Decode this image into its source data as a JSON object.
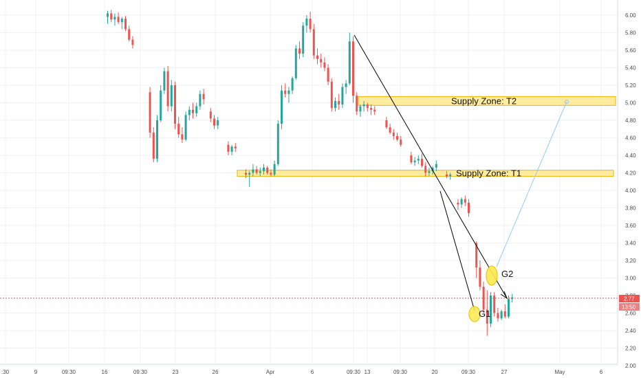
{
  "chart_data": {
    "type": "candlestick",
    "y_axis": {
      "position": "right",
      "min": 2.0,
      "max": 6.1,
      "ticks": [
        "6.00",
        "5.80",
        "5.60",
        "5.40",
        "5.20",
        "5.00",
        "4.80",
        "4.60",
        "4.40",
        "4.20",
        "4.00",
        "3.80",
        "3.60",
        "3.40",
        "3.20",
        "3.00",
        "2.80",
        "2.60",
        "2.40",
        "2.20",
        "2.00"
      ]
    },
    "x_axis": {
      "labels": [
        ":30",
        "9",
        "09:30",
        "16",
        "09:30",
        "23",
        "26",
        "Apr",
        "6",
        "09:30",
        "13",
        "09:30",
        "20",
        "09:30",
        "27",
        "May",
        "6"
      ]
    },
    "grid": true,
    "colors": {
      "up": "#26a69a",
      "down": "#ef5350",
      "zone_fill": "#ffe680",
      "zone_border": "#f0b400",
      "price_line": "#ef5350",
      "trend": "#000000",
      "projection": "#90caf9",
      "marker": "#ffe94d"
    },
    "current_price": {
      "price": 2.77,
      "label": "2.77",
      "countdown": "13:50"
    },
    "zones": [
      {
        "label": "Supply Zone: T2",
        "low": 4.97,
        "high": 5.07
      },
      {
        "label": "Supply Zone: T1",
        "low": 4.16,
        "high": 4.23
      }
    ],
    "annotations": [
      {
        "label": "G1",
        "price": 2.6
      },
      {
        "label": "G2",
        "price": 3.05
      }
    ],
    "candles": [
      [
        5.98,
        6.05,
        5.9,
        6.02
      ],
      [
        6.02,
        6.06,
        5.92,
        5.95
      ],
      [
        5.95,
        6.02,
        5.88,
        5.98
      ],
      [
        5.98,
        6.03,
        5.9,
        5.92
      ],
      [
        5.92,
        5.98,
        5.84,
        5.96
      ],
      [
        5.96,
        5.99,
        5.82,
        5.84
      ],
      [
        5.84,
        5.88,
        5.7,
        5.72
      ],
      [
        5.72,
        5.76,
        5.62,
        5.66
      ],
      [
        5.12,
        5.18,
        4.6,
        4.66
      ],
      [
        4.66,
        4.72,
        4.32,
        4.36
      ],
      [
        4.36,
        4.86,
        4.32,
        4.8
      ],
      [
        4.8,
        5.2,
        4.78,
        5.14
      ],
      [
        5.14,
        5.4,
        5.1,
        5.36
      ],
      [
        5.36,
        5.42,
        4.9,
        4.96
      ],
      [
        4.96,
        5.26,
        4.9,
        5.2
      ],
      [
        5.2,
        5.24,
        4.7,
        4.76
      ],
      [
        4.76,
        4.84,
        4.6,
        4.64
      ],
      [
        4.64,
        4.72,
        4.54,
        4.58
      ],
      [
        4.58,
        4.9,
        4.56,
        4.86
      ],
      [
        4.86,
        4.96,
        4.8,
        4.92
      ],
      [
        4.92,
        5.0,
        4.82,
        4.88
      ],
      [
        4.88,
        5.0,
        4.84,
        4.96
      ],
      [
        4.96,
        5.14,
        4.92,
        5.1
      ],
      [
        5.1,
        5.16,
        4.98,
        5.04
      ],
      [
        4.9,
        4.94,
        4.78,
        4.82
      ],
      [
        4.82,
        4.86,
        4.7,
        4.74
      ],
      [
        4.74,
        4.84,
        4.7,
        4.8
      ],
      [
        4.52,
        4.56,
        4.4,
        4.44
      ],
      [
        4.44,
        4.52,
        4.4,
        4.5
      ],
      [
        4.5,
        4.54,
        4.44,
        4.48
      ],
      [
        4.2,
        4.24,
        4.14,
        4.18
      ],
      [
        4.18,
        4.22,
        4.04,
        4.2
      ],
      [
        4.2,
        4.3,
        4.16,
        4.24
      ],
      [
        4.24,
        4.28,
        4.18,
        4.2
      ],
      [
        4.2,
        4.26,
        4.16,
        4.22
      ],
      [
        4.22,
        4.3,
        4.18,
        4.26
      ],
      [
        4.26,
        4.28,
        4.18,
        4.2
      ],
      [
        4.2,
        4.24,
        4.16,
        4.18
      ],
      [
        4.18,
        4.34,
        4.16,
        4.3
      ],
      [
        4.3,
        4.8,
        4.28,
        4.76
      ],
      [
        4.76,
        5.2,
        4.7,
        5.14
      ],
      [
        5.14,
        5.22,
        5.06,
        5.1
      ],
      [
        5.1,
        5.18,
        5.0,
        5.14
      ],
      [
        5.14,
        5.3,
        5.1,
        5.28
      ],
      [
        5.28,
        5.66,
        5.26,
        5.62
      ],
      [
        5.62,
        5.7,
        5.5,
        5.56
      ],
      [
        5.56,
        5.92,
        5.52,
        5.88
      ],
      [
        5.88,
        6.0,
        5.8,
        5.96
      ],
      [
        5.96,
        6.04,
        5.8,
        5.84
      ],
      [
        5.84,
        5.9,
        5.5,
        5.54
      ],
      [
        5.54,
        5.62,
        5.44,
        5.5
      ],
      [
        5.5,
        5.56,
        5.4,
        5.46
      ],
      [
        5.46,
        5.52,
        5.36,
        5.4
      ],
      [
        5.4,
        5.44,
        5.2,
        5.24
      ],
      [
        5.24,
        5.28,
        4.9,
        4.94
      ],
      [
        4.94,
        5.06,
        4.9,
        5.02
      ],
      [
        5.02,
        5.1,
        4.92,
        4.98
      ],
      [
        4.98,
        5.22,
        4.94,
        5.18
      ],
      [
        5.18,
        5.26,
        5.1,
        5.22
      ],
      [
        5.22,
        5.8,
        5.2,
        5.7
      ],
      [
        5.7,
        5.76,
        5.0,
        5.08
      ],
      [
        5.08,
        5.12,
        4.86,
        4.9
      ],
      [
        4.9,
        4.98,
        4.84,
        4.96
      ],
      [
        4.96,
        5.02,
        4.9,
        4.98
      ],
      [
        4.98,
        5.0,
        4.9,
        4.94
      ],
      [
        4.94,
        4.98,
        4.86,
        4.92
      ],
      [
        4.92,
        4.96,
        4.86,
        4.9
      ],
      [
        4.8,
        4.84,
        4.7,
        4.72
      ],
      [
        4.72,
        4.76,
        4.64,
        4.66
      ],
      [
        4.66,
        4.7,
        4.58,
        4.62
      ],
      [
        4.62,
        4.66,
        4.56,
        4.58
      ],
      [
        4.58,
        4.62,
        4.5,
        4.52
      ],
      [
        4.4,
        4.44,
        4.3,
        4.32
      ],
      [
        4.32,
        4.38,
        4.28,
        4.34
      ],
      [
        4.34,
        4.4,
        4.3,
        4.36
      ],
      [
        4.36,
        4.42,
        4.26,
        4.28
      ],
      [
        4.28,
        4.32,
        4.16,
        4.2
      ],
      [
        4.2,
        4.26,
        4.16,
        4.22
      ],
      [
        4.22,
        4.28,
        4.18,
        4.26
      ],
      [
        4.26,
        4.34,
        4.22,
        4.3
      ],
      [
        4.18,
        4.22,
        4.14,
        4.16
      ],
      [
        4.16,
        4.2,
        4.12,
        4.18
      ],
      [
        3.86,
        3.9,
        3.78,
        3.84
      ],
      [
        3.84,
        3.92,
        3.8,
        3.9
      ],
      [
        3.9,
        3.94,
        3.82,
        3.86
      ],
      [
        3.86,
        3.9,
        3.7,
        3.74
      ],
      [
        3.4,
        3.42,
        3.0,
        3.12
      ],
      [
        3.12,
        3.2,
        2.86,
        2.9
      ],
      [
        2.9,
        2.96,
        2.6,
        2.64
      ],
      [
        2.64,
        2.86,
        2.34,
        2.48
      ],
      [
        2.48,
        2.84,
        2.44,
        2.8
      ],
      [
        2.8,
        2.84,
        2.56,
        2.6
      ],
      [
        2.6,
        2.66,
        2.5,
        2.54
      ],
      [
        2.54,
        2.64,
        2.52,
        2.62
      ],
      [
        2.62,
        2.7,
        2.54,
        2.56
      ],
      [
        2.56,
        2.8,
        2.54,
        2.76
      ],
      [
        2.76,
        2.82,
        2.72,
        2.78
      ]
    ]
  }
}
